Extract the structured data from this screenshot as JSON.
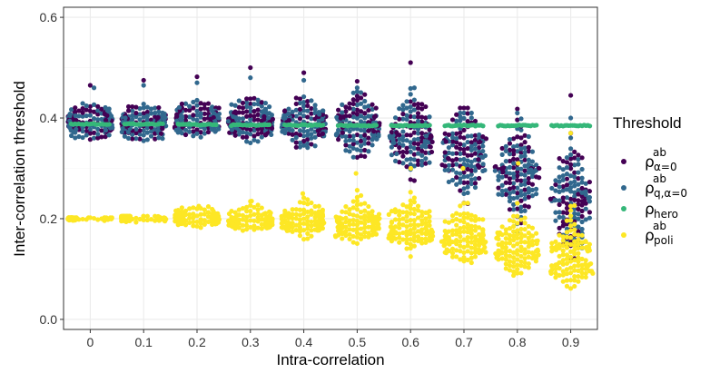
{
  "chart_data": {
    "type": "scatter",
    "subtype": "beeswarm",
    "xlabel": "Intra-correlation",
    "ylabel": "Inter-correlation threshold",
    "categories": [
      "0",
      "0.1",
      "0.2",
      "0.3",
      "0.4",
      "0.5",
      "0.6",
      "0.7",
      "0.8",
      "0.9"
    ],
    "ylim": [
      -0.02,
      0.62
    ],
    "yticks": [
      "0.0",
      "0.2",
      "0.4",
      "0.6"
    ],
    "ytick_values": [
      0.0,
      0.2,
      0.4,
      0.6
    ],
    "grid": true,
    "legend": {
      "title": "Threshold",
      "position": "right",
      "entries": [
        {
          "key": "alpha",
          "base": "ρ",
          "sup": "ab",
          "sub": "α=0",
          "color": "#440154"
        },
        {
          "key": "q",
          "base": "ρ",
          "sup": "ab",
          "sub": "q,α=0",
          "color": "#31688E"
        },
        {
          "key": "hero",
          "base": "ρ",
          "sup": "",
          "sub": "hero",
          "color": "#35B779"
        },
        {
          "key": "poli",
          "base": "ρ",
          "sup": "ab",
          "sub": "poli",
          "color": "#FDE725"
        }
      ]
    },
    "series": [
      {
        "key": "alpha",
        "color": "#440154",
        "center": [
          0.392,
          0.392,
          0.393,
          0.394,
          0.39,
          0.384,
          0.37,
          0.33,
          0.29,
          0.24
        ],
        "spread": [
          0.022,
          0.022,
          0.024,
          0.026,
          0.03,
          0.04,
          0.055,
          0.06,
          0.065,
          0.075
        ],
        "max": [
          0.465,
          0.475,
          0.482,
          0.5,
          0.49,
          0.473,
          0.51,
          0.42,
          0.418,
          0.445
        ]
      },
      {
        "key": "q",
        "color": "#31688E",
        "center": [
          0.392,
          0.392,
          0.393,
          0.394,
          0.39,
          0.384,
          0.37,
          0.33,
          0.29,
          0.24
        ],
        "spread": [
          0.022,
          0.022,
          0.024,
          0.026,
          0.03,
          0.04,
          0.055,
          0.06,
          0.065,
          0.075
        ],
        "max": [
          0.46,
          0.465,
          0.47,
          0.48,
          0.475,
          0.46,
          0.46,
          0.41,
          0.41,
          0.4
        ]
      },
      {
        "key": "hero",
        "color": "#35B779",
        "value": [
          0.388,
          0.388,
          0.387,
          0.386,
          0.386,
          0.385,
          0.385,
          0.385,
          0.385,
          0.385
        ]
      },
      {
        "key": "poli",
        "color": "#FDE725",
        "center": [
          0.2,
          0.2,
          0.2,
          0.196,
          0.193,
          0.19,
          0.175,
          0.16,
          0.14,
          0.12
        ],
        "spread": [
          0.002,
          0.004,
          0.01,
          0.013,
          0.018,
          0.022,
          0.026,
          0.03,
          0.034,
          0.036
        ],
        "max": [
          0.202,
          0.205,
          0.225,
          0.235,
          0.25,
          0.29,
          0.3,
          0.3,
          0.31,
          0.37
        ]
      }
    ]
  }
}
